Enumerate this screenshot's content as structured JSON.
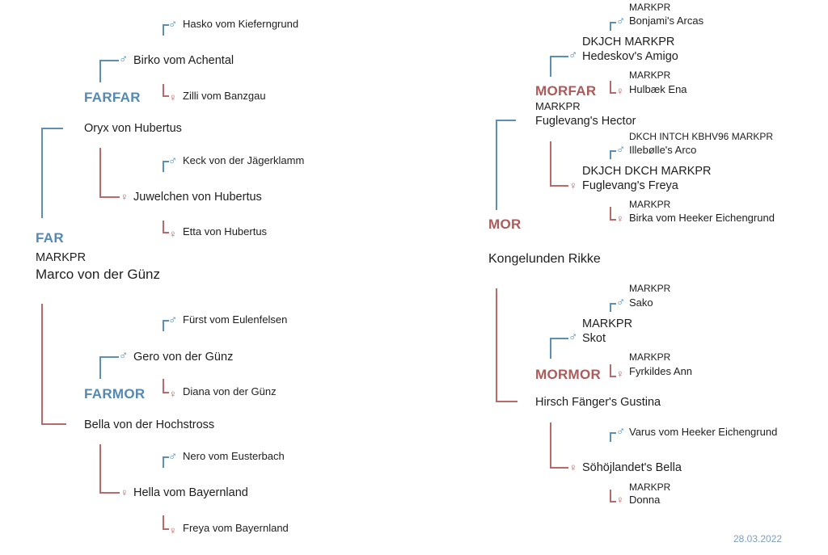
{
  "symbols": {
    "male": "♂",
    "female": "♀"
  },
  "colors": {
    "paternal_blue": "#5389b2",
    "maternal_red": "#ac5a5a"
  },
  "left": {
    "far_label": "FAR",
    "far_title": "MARKPR",
    "far_name": "Marco von der Günz",
    "farfar_label": "FARFAR",
    "farmor_label": "FARMOR",
    "far_sire": "Oryx von Hubertus",
    "far_dam": "Bella von der Hochstross",
    "oryx_sire": "Birko vom Achental",
    "oryx_dam": "Juwelchen von Hubertus",
    "birko_sire": "Hasko vom Kieferngrund",
    "birko_dam": "Zilli vom Banzgau",
    "juwel_sire": "Keck von der Jägerklamm",
    "juwel_dam": "Etta von Hubertus",
    "bella_sire": "Gero von der Günz",
    "bella_dam": "Hella vom Bayernland",
    "gero_sire": "Fürst vom Eulenfelsen",
    "gero_dam": "Diana von der Günz",
    "hella_sire": "Nero vom Eusterbach",
    "hella_dam": "Freya vom Bayernland"
  },
  "right": {
    "mor_label": "MOR",
    "mor_name": "Kongelunden Rikke",
    "morfar_label": "MORFAR",
    "mormor_label": "MORMOR",
    "mor_sire_title": "MARKPR",
    "mor_sire": "Fuglevang's Hector",
    "mor_dam": "Hirsch Fänger's Gustina",
    "hector_sire_title": "DKJCH MARKPR",
    "hector_sire": "Hedeskov's Amigo",
    "hector_dam_title": "DKJCH DKCH MARKPR",
    "hector_dam": "Fuglevang's Freya",
    "amigo_sire_title": "MARKPR",
    "amigo_sire": "Bonjami's Arcas",
    "amigo_dam_title": "MARKPR",
    "amigo_dam": "Hulbæk Ena",
    "freya_sire_title": "DKCH INTCH KBHV96 MARKPR",
    "freya_sire": "Illebølle's Arco",
    "freya_dam_title": "MARKPR",
    "freya_dam": "Birka vom Heeker Eichengrund",
    "gustina_sire_title": "MARKPR",
    "gustina_sire": "Skot",
    "gustina_dam": "Söhöjlandet's Bella",
    "skot_sire_title": "MARKPR",
    "skot_sire": "Sako",
    "skot_dam_title": "MARKPR",
    "skot_dam": "Fyrkildes Ann",
    "bella_sire": "Varus vom Heeker Eichengrund",
    "bella_dam_title": "MARKPR",
    "bella_dam": "Donna"
  },
  "footer": {
    "date": "28.03.2022"
  }
}
